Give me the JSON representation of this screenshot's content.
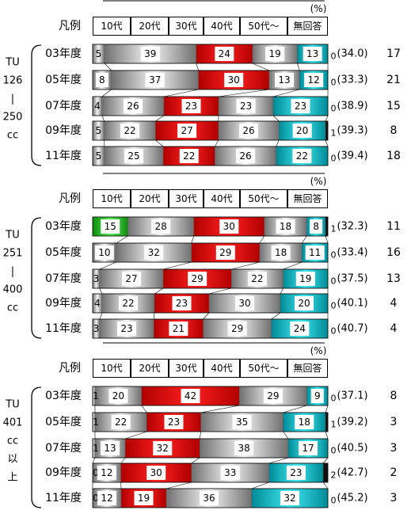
{
  "chart_data": [
    {
      "type": "bar",
      "stacked": true,
      "orientation": "horizontal",
      "percent_symbol": "(%)",
      "legend_label": "凡例",
      "group_label": [
        "TU",
        "126",
        "|",
        "250",
        "cc"
      ],
      "categories": [
        "03年度",
        "05年度",
        "07年度",
        "09年度",
        "11年度"
      ],
      "series": [
        {
          "name": "10代",
          "values": [
            5,
            8,
            4,
            5,
            5
          ]
        },
        {
          "name": "20代",
          "values": [
            39,
            37,
            26,
            22,
            25
          ]
        },
        {
          "name": "30代",
          "values": [
            24,
            30,
            23,
            27,
            22
          ]
        },
        {
          "name": "40代",
          "values": [
            19,
            13,
            23,
            26,
            26
          ]
        },
        {
          "name": "50代～",
          "values": [
            13,
            12,
            23,
            20,
            22
          ]
        },
        {
          "name": "無回答",
          "values": [
            0,
            0,
            0,
            1,
            0
          ]
        }
      ],
      "average_age": [
        "(34.0)",
        "(33.3)",
        "(38.9)",
        "(39.3)",
        "(39.4)"
      ],
      "counts": [
        17,
        21,
        15,
        8,
        18
      ]
    },
    {
      "type": "bar",
      "stacked": true,
      "orientation": "horizontal",
      "percent_symbol": "(%)",
      "legend_label": "凡例",
      "group_label": [
        "TU",
        "251",
        "|",
        "400",
        "cc"
      ],
      "categories": [
        "03年度",
        "05年度",
        "07年度",
        "09年度",
        "11年度"
      ],
      "series": [
        {
          "name": "10代",
          "values": [
            15,
            10,
            3,
            4,
            3
          ]
        },
        {
          "name": "20代",
          "values": [
            28,
            32,
            27,
            22,
            23
          ]
        },
        {
          "name": "30代",
          "values": [
            30,
            29,
            29,
            23,
            21
          ]
        },
        {
          "name": "40代",
          "values": [
            18,
            18,
            22,
            30,
            29
          ]
        },
        {
          "name": "50代～",
          "values": [
            8,
            11,
            19,
            20,
            24
          ]
        },
        {
          "name": "無回答",
          "values": [
            1,
            0,
            0,
            0,
            0
          ]
        }
      ],
      "average_age": [
        "(32.3)",
        "(33.4)",
        "(37.5)",
        "(40.1)",
        "(40.7)"
      ],
      "counts": [
        11,
        16,
        13,
        4,
        4
      ]
    },
    {
      "type": "bar",
      "stacked": true,
      "orientation": "horizontal",
      "percent_symbol": "(%)",
      "legend_label": "凡例",
      "group_label": [
        "TU",
        "401",
        "cc",
        "以",
        "上"
      ],
      "categories": [
        "03年度",
        "05年度",
        "07年度",
        "09年度",
        "11年度"
      ],
      "series": [
        {
          "name": "10代",
          "values": [
            1,
            1,
            1,
            0,
            0
          ]
        },
        {
          "name": "20代",
          "values": [
            20,
            22,
            13,
            12,
            12
          ]
        },
        {
          "name": "30代",
          "values": [
            42,
            23,
            32,
            30,
            19
          ]
        },
        {
          "name": "40代",
          "values": [
            29,
            35,
            38,
            33,
            36
          ]
        },
        {
          "name": "50代～",
          "values": [
            9,
            18,
            17,
            23,
            32
          ]
        },
        {
          "name": "無回答",
          "values": [
            0,
            1,
            0,
            2,
            0
          ]
        }
      ],
      "average_age": [
        "(37.1)",
        "(39.2)",
        "(40.5)",
        "(42.7)",
        "(45.2)"
      ],
      "counts": [
        8,
        3,
        3,
        2,
        3
      ]
    }
  ],
  "colors": {
    "teens": "#2db82d",
    "twenties": "#9a9a9a",
    "thirties": "#e00000",
    "forties": "#9a9a9a",
    "fifties": "#00c8d6",
    "no_answer": "#111111"
  }
}
